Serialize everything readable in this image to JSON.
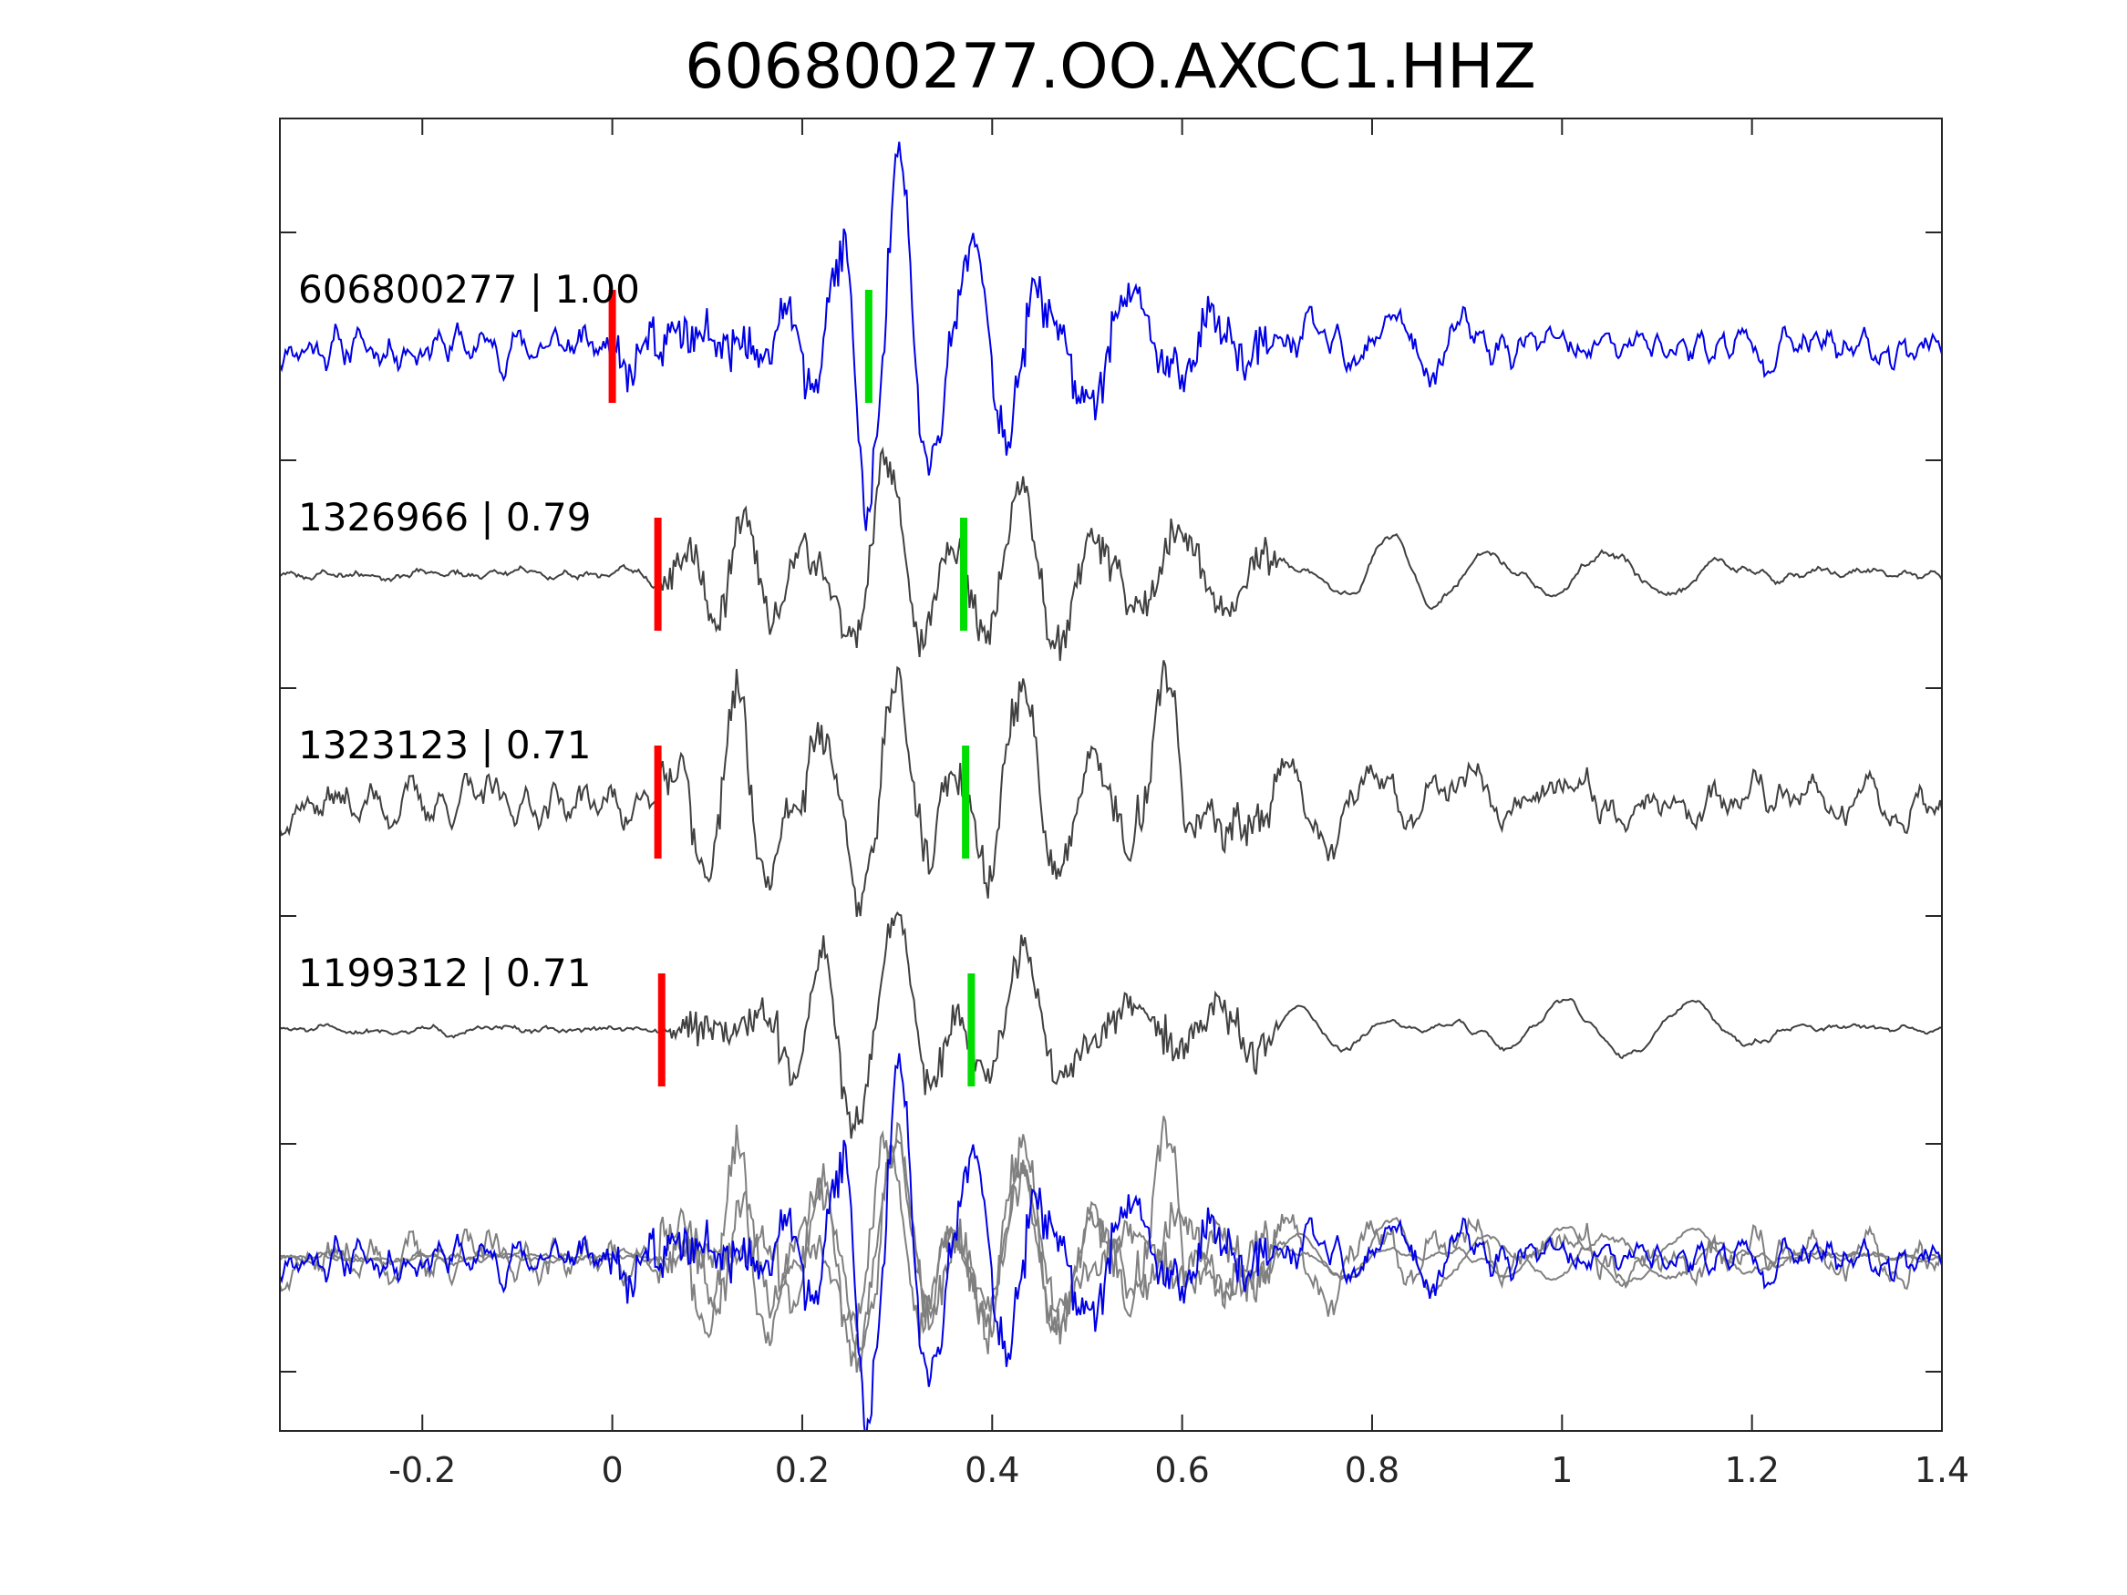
{
  "chart_data": {
    "type": "line",
    "title": "606800277.OO.AXCC1.HHZ",
    "xlabel": "",
    "ylabel": "",
    "xlim": [
      -0.35,
      1.4
    ],
    "x_ticks": [
      -0.2,
      0,
      0.2,
      0.4,
      0.6,
      0.8,
      1,
      1.2,
      1.4
    ],
    "x_tick_labels": [
      "-0.2",
      "0",
      "0.2",
      "0.4",
      "0.6",
      "0.8",
      "1",
      "1.2",
      "1.4"
    ],
    "y_ticks_labeled": false,
    "grid": false,
    "colors": {
      "primary_trace": "#0000e6",
      "match_trace": "#404040",
      "overlay_match": "#808080",
      "p_pick": "#ff0000",
      "s_pick": "#00dd00",
      "axes": "#262626"
    },
    "traces": [
      {
        "id": "606800277",
        "cc": "1.00",
        "label": "606800277 | 1.00",
        "color": "primary",
        "p_pick": 0.0,
        "s_pick": 0.27,
        "noise": 0.16,
        "smooth": 2,
        "seed": 11,
        "bursts": [
          {
            "t": 0.3,
            "amp": 1.0,
            "f": 16,
            "w": 0.05
          },
          {
            "t": 0.38,
            "amp": 0.75,
            "f": 14,
            "w": 0.1
          },
          {
            "t": 0.24,
            "amp": 0.5,
            "f": 18,
            "w": 0.06
          },
          {
            "t": 0.55,
            "amp": 0.35,
            "f": 12,
            "w": 0.1
          },
          {
            "t": 0.82,
            "amp": 0.28,
            "f": 12,
            "w": 0.08
          }
        ]
      },
      {
        "id": "1326966",
        "cc": "0.79",
        "label": "1326966 | 0.79",
        "color": "match",
        "p_pick": 0.048,
        "s_pick": 0.37,
        "noise": 0.05,
        "smooth": 3,
        "seed": 23,
        "bursts": [
          {
            "t": 0.29,
            "amp": 1.0,
            "f": 12,
            "w": 0.05
          },
          {
            "t": 0.43,
            "amp": 0.7,
            "f": 12,
            "w": 0.07
          },
          {
            "t": 0.14,
            "amp": 0.45,
            "f": 16,
            "w": 0.07
          },
          {
            "t": 0.6,
            "amp": 0.35,
            "f": 11,
            "w": 0.1
          },
          {
            "t": 0.82,
            "amp": 0.3,
            "f": 10,
            "w": 0.08
          },
          {
            "t": 1.05,
            "amp": 0.18,
            "f": 8,
            "w": 0.15
          }
        ]
      },
      {
        "id": "1323123",
        "cc": "0.71",
        "label": "1323123 | 0.71",
        "color": "match",
        "p_pick": 0.048,
        "s_pick": 0.372,
        "noise": 0.22,
        "smooth": 3,
        "seed": 37,
        "bursts": [
          {
            "t": 0.3,
            "amp": 1.0,
            "f": 13,
            "w": 0.05
          },
          {
            "t": 0.43,
            "amp": 0.95,
            "f": 12,
            "w": 0.07
          },
          {
            "t": 0.13,
            "amp": 0.9,
            "f": 15,
            "w": 0.05
          },
          {
            "t": 0.58,
            "amp": 0.95,
            "f": 11,
            "w": 0.03
          },
          {
            "t": 0.22,
            "amp": 0.5,
            "f": 14,
            "w": 0.06
          },
          {
            "t": 0.8,
            "amp": 0.3,
            "f": 11,
            "w": 0.1
          }
        ]
      },
      {
        "id": "1199312",
        "cc": "0.71",
        "label": "1199312 | 0.71",
        "color": "match",
        "p_pick": 0.052,
        "s_pick": 0.378,
        "noise": 0.04,
        "smooth": 3,
        "seed": 51,
        "bursts": [
          {
            "t": 0.3,
            "amp": 1.0,
            "f": 12,
            "w": 0.05
          },
          {
            "t": 0.43,
            "amp": 0.65,
            "f": 12,
            "w": 0.06
          },
          {
            "t": 0.22,
            "amp": 0.6,
            "f": 16,
            "w": 0.05
          },
          {
            "t": 0.55,
            "amp": 0.25,
            "f": 10,
            "w": 0.12
          },
          {
            "t": 0.72,
            "amp": 0.2,
            "f": 10,
            "w": 0.1
          },
          {
            "t": 1.0,
            "amp": 0.22,
            "f": 8,
            "w": 0.1
          },
          {
            "t": 1.14,
            "amp": 0.18,
            "f": 8,
            "w": 0.08
          }
        ]
      }
    ]
  }
}
